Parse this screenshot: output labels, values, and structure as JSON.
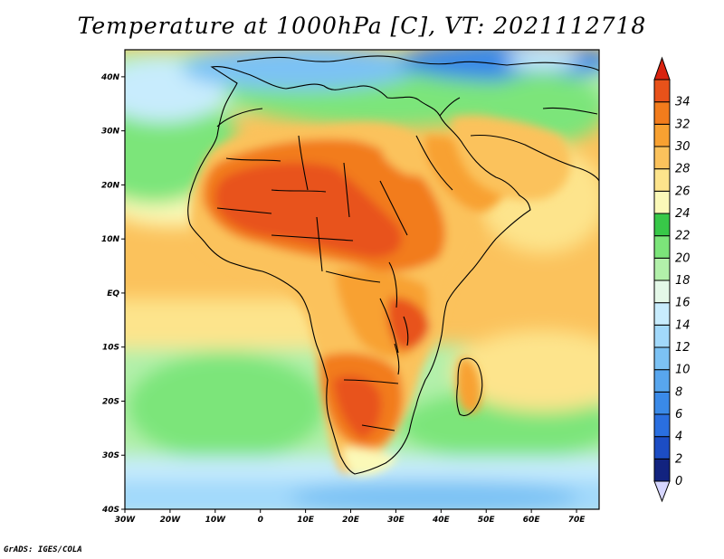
{
  "title": "Temperature at 1000hPa [C], VT: 2021112718",
  "footer": "GrADS: IGES/COLA",
  "map": {
    "lon_range": [
      -30,
      75
    ],
    "lat_range": [
      -40,
      45
    ],
    "lon_ticks": [
      {
        "v": -30,
        "label": "30W"
      },
      {
        "v": -20,
        "label": "20W"
      },
      {
        "v": -10,
        "label": "10W"
      },
      {
        "v": 0,
        "label": "0"
      },
      {
        "v": 10,
        "label": "10E"
      },
      {
        "v": 20,
        "label": "20E"
      },
      {
        "v": 30,
        "label": "30E"
      },
      {
        "v": 40,
        "label": "40E"
      },
      {
        "v": 50,
        "label": "50E"
      },
      {
        "v": 60,
        "label": "60E"
      },
      {
        "v": 70,
        "label": "70E"
      }
    ],
    "lat_ticks": [
      {
        "v": 40,
        "label": "40N"
      },
      {
        "v": 30,
        "label": "30N"
      },
      {
        "v": 20,
        "label": "20N"
      },
      {
        "v": 10,
        "label": "10N"
      },
      {
        "v": 0,
        "label": "EQ"
      },
      {
        "v": -10,
        "label": "10S"
      },
      {
        "v": -20,
        "label": "20S"
      },
      {
        "v": -30,
        "label": "30S"
      },
      {
        "v": -40,
        "label": "40S"
      }
    ]
  },
  "colorbar": {
    "min_color": "#d6d6ff",
    "max_color": "#d9230f",
    "levels": [
      {
        "value": "0",
        "color": "#12237f"
      },
      {
        "value": "2",
        "color": "#1c4dc4"
      },
      {
        "value": "4",
        "color": "#2a6fe0"
      },
      {
        "value": "6",
        "color": "#3a8ae8"
      },
      {
        "value": "8",
        "color": "#58a6ee"
      },
      {
        "value": "10",
        "color": "#7cc2f4"
      },
      {
        "value": "12",
        "color": "#a2d9fb"
      },
      {
        "value": "14",
        "color": "#c8ecfd"
      },
      {
        "value": "16",
        "color": "#e4f8e8"
      },
      {
        "value": "18",
        "color": "#b2f0aa"
      },
      {
        "value": "20",
        "color": "#7ce57a"
      },
      {
        "value": "22",
        "color": "#38c848"
      },
      {
        "value": "24",
        "color": "#fbf9b8"
      },
      {
        "value": "26",
        "color": "#fde48c"
      },
      {
        "value": "28",
        "color": "#fbc25c"
      },
      {
        "value": "30",
        "color": "#f8a131"
      },
      {
        "value": "32",
        "color": "#f27c1c"
      },
      {
        "value": "34",
        "color": "#e8521a"
      }
    ]
  }
}
